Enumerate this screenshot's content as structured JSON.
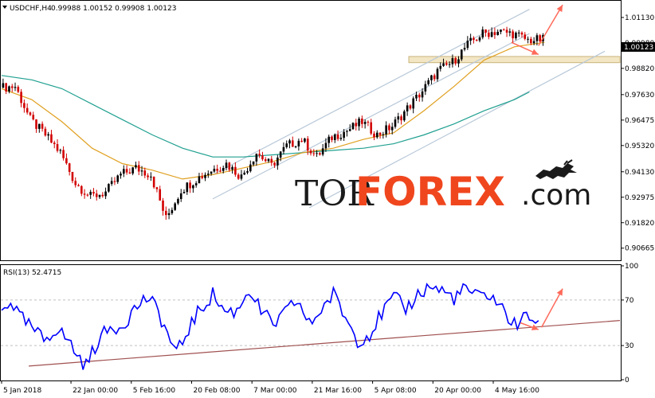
{
  "header": {
    "symbol": "USDCHF,H4",
    "ohlc": "0.99988 1.00152 0.99908 1.00123",
    "menu_icon": "triangle-down-icon"
  },
  "logo": {
    "part1": "TOR",
    "part2": "FOREX",
    "part3": ".com",
    "icon": "bull-bear-icon"
  },
  "colors": {
    "bull_candle": "#000000",
    "bear_candle": "#d20000",
    "ma_fast": "#e0a020",
    "ma_slow": "#20a090",
    "channel": "#b8c8d8",
    "zone_fill": "#f3e6c4",
    "zone_stroke": "#c8b47c",
    "forecast_arrow": "#ff6a5a",
    "rsi_line": "#0000ff",
    "rsi_trend": "#a05050",
    "price_tag": "#000000"
  },
  "chart_data": [
    {
      "type": "candlestick",
      "symbol": "USDCHF",
      "timeframe": "H4",
      "last_price": "1.00123",
      "y_ticks": [
        "1.01130",
        "0.99980",
        "0.98820",
        "0.97630",
        "0.96475",
        "0.95320",
        "0.94130",
        "0.92975",
        "0.91820",
        "0.90665"
      ],
      "ylim": [
        0.9015,
        1.0185
      ],
      "x_ticks": [
        "5 Jan 2018",
        "22 Jan 00:00",
        "5 Feb 16:00",
        "20 Feb 08:00",
        "7 Mar 00:00",
        "21 Mar 16:00",
        "5 Apr 08:00",
        "20 Apr 00:00",
        "4 May 16:00"
      ],
      "x_tick_positions": [
        0,
        23,
        43,
        63,
        83,
        103,
        123,
        143,
        163
      ],
      "bar_count": 180,
      "price_path": [
        [
          0,
          0.9795
        ],
        [
          5,
          0.98
        ],
        [
          10,
          0.965
        ],
        [
          15,
          0.958
        ],
        [
          20,
          0.95
        ],
        [
          25,
          0.936
        ],
        [
          30,
          0.93
        ],
        [
          35,
          0.932
        ],
        [
          40,
          0.94
        ],
        [
          45,
          0.943
        ],
        [
          50,
          0.94
        ],
        [
          53,
          0.928
        ],
        [
          55,
          0.92
        ],
        [
          60,
          0.933
        ],
        [
          65,
          0.938
        ],
        [
          70,
          0.942
        ],
        [
          75,
          0.945
        ],
        [
          80,
          0.939
        ],
        [
          85,
          0.95
        ],
        [
          90,
          0.944
        ],
        [
          95,
          0.953
        ],
        [
          100,
          0.956
        ],
        [
          105,
          0.948
        ],
        [
          110,
          0.957
        ],
        [
          115,
          0.96
        ],
        [
          120,
          0.964
        ],
        [
          125,
          0.958
        ],
        [
          130,
          0.962
        ],
        [
          135,
          0.97
        ],
        [
          140,
          0.978
        ],
        [
          145,
          0.987
        ],
        [
          150,
          0.991
        ],
        [
          155,
          0.999
        ],
        [
          160,
          1.004
        ],
        [
          165,
          1.005
        ],
        [
          170,
          1.004
        ],
        [
          175,
          1.001
        ],
        [
          180,
          1.0012
        ]
      ],
      "ma_fast_path": [
        [
          0,
          0.979
        ],
        [
          10,
          0.974
        ],
        [
          20,
          0.964
        ],
        [
          30,
          0.952
        ],
        [
          40,
          0.945
        ],
        [
          50,
          0.942
        ],
        [
          60,
          0.938
        ],
        [
          70,
          0.94
        ],
        [
          80,
          0.943
        ],
        [
          90,
          0.946
        ],
        [
          100,
          0.95
        ],
        [
          110,
          0.952
        ],
        [
          120,
          0.956
        ],
        [
          130,
          0.959
        ],
        [
          140,
          0.969
        ],
        [
          150,
          0.98
        ],
        [
          160,
          0.992
        ],
        [
          170,
          0.998
        ],
        [
          180,
          1.0
        ]
      ],
      "ma_slow_path": [
        [
          0,
          0.985
        ],
        [
          10,
          0.983
        ],
        [
          20,
          0.979
        ],
        [
          30,
          0.972
        ],
        [
          40,
          0.965
        ],
        [
          50,
          0.958
        ],
        [
          60,
          0.952
        ],
        [
          70,
          0.948
        ],
        [
          80,
          0.948
        ],
        [
          90,
          0.949
        ],
        [
          100,
          0.95
        ],
        [
          110,
          0.951
        ],
        [
          120,
          0.952
        ],
        [
          130,
          0.954
        ],
        [
          140,
          0.958
        ],
        [
          150,
          0.963
        ],
        [
          160,
          0.969
        ],
        [
          170,
          0.974
        ],
        [
          175,
          0.9775
        ]
      ],
      "channel_upper": [
        [
          70,
          0.94
        ],
        [
          175,
          1.015
        ]
      ],
      "channel_mid": [
        [
          70,
          0.929
        ],
        [
          175,
          1.004
        ]
      ],
      "channel_lower": [
        [
          102,
          0.925
        ],
        [
          200,
          0.996
        ]
      ],
      "support_zone": {
        "x0": 135,
        "x1": 205,
        "y_top": 0.9936,
        "y_bottom": 0.9908
      },
      "forecast_arrows": [
        {
          "from": [
            178,
            0.9985
          ],
          "to": [
            186,
            1.017
          ]
        },
        {
          "from": [
            169,
            1.0
          ],
          "to": [
            178,
            0.9945
          ]
        }
      ]
    },
    {
      "type": "line",
      "name": "RSI(13) 52.4715",
      "ylim": [
        0,
        100
      ],
      "y_ticks": [
        0,
        30,
        70,
        100
      ],
      "levels": [
        30,
        70
      ],
      "rsi_path": [
        [
          0,
          60
        ],
        [
          3,
          70
        ],
        [
          6,
          55
        ],
        [
          10,
          45
        ],
        [
          14,
          35
        ],
        [
          18,
          45
        ],
        [
          22,
          35
        ],
        [
          25,
          22
        ],
        [
          28,
          12
        ],
        [
          32,
          35
        ],
        [
          36,
          45
        ],
        [
          40,
          48
        ],
        [
          44,
          62
        ],
        [
          48,
          72
        ],
        [
          52,
          60
        ],
        [
          55,
          40
        ],
        [
          58,
          22
        ],
        [
          62,
          45
        ],
        [
          66,
          62
        ],
        [
          70,
          75
        ],
        [
          74,
          60
        ],
        [
          78,
          60
        ],
        [
          82,
          80
        ],
        [
          86,
          60
        ],
        [
          90,
          48
        ],
        [
          94,
          58
        ],
        [
          98,
          70
        ],
        [
          102,
          48
        ],
        [
          106,
          62
        ],
        [
          110,
          75
        ],
        [
          114,
          55
        ],
        [
          118,
          35
        ],
        [
          122,
          40
        ],
        [
          126,
          58
        ],
        [
          130,
          72
        ],
        [
          134,
          62
        ],
        [
          138,
          75
        ],
        [
          142,
          82
        ],
        [
          146,
          78
        ],
        [
          150,
          72
        ],
        [
          154,
          80
        ],
        [
          158,
          72
        ],
        [
          162,
          75
        ],
        [
          166,
          62
        ],
        [
          170,
          48
        ],
        [
          174,
          55
        ],
        [
          178,
          52
        ]
      ],
      "trend_line": [
        [
          9,
          12
        ],
        [
          205,
          52
        ]
      ],
      "forecast_arrows": [
        {
          "from": [
            179,
            46
          ],
          "to": [
            186,
            80
          ]
        },
        {
          "from": [
            172,
            50
          ],
          "to": [
            178,
            44
          ]
        }
      ]
    }
  ]
}
